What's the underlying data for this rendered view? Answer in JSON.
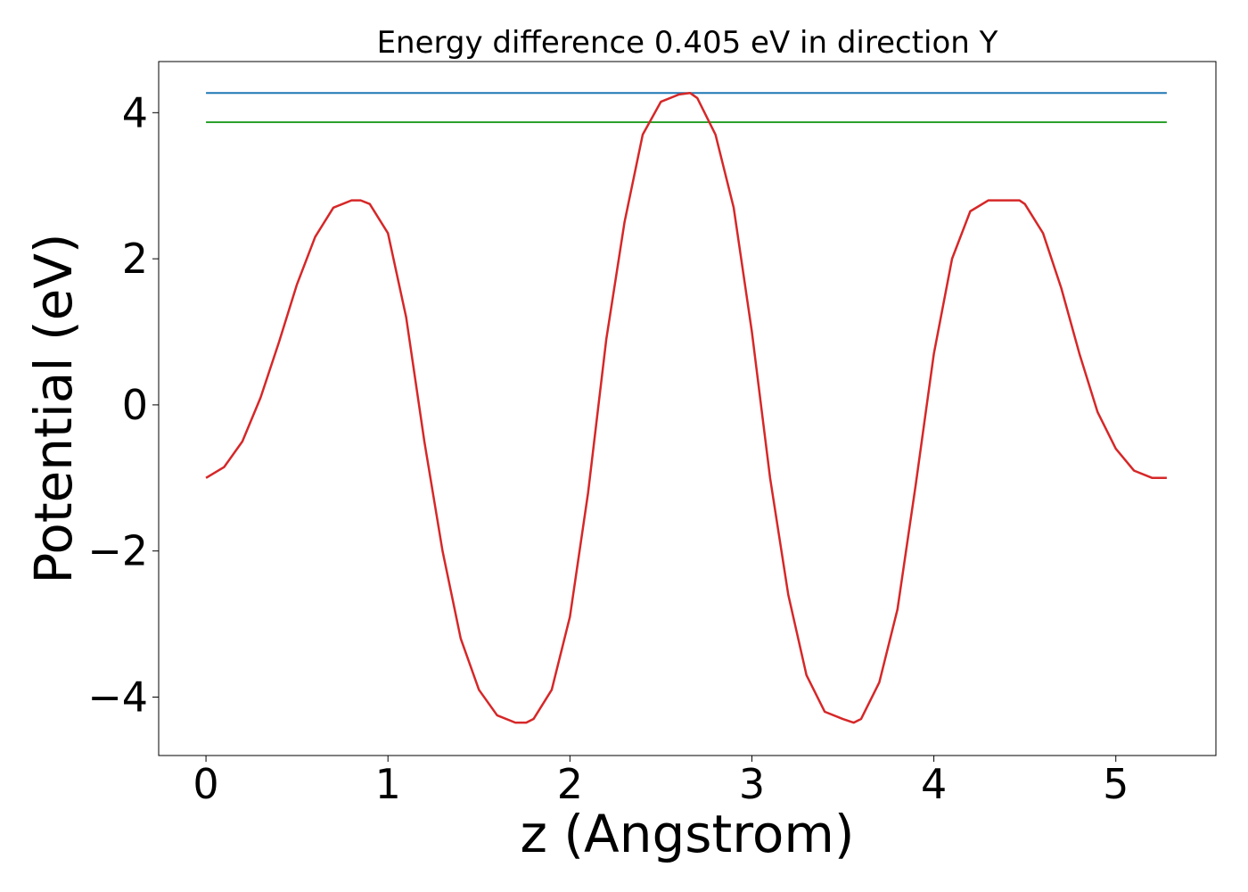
{
  "chart_data": {
    "type": "line",
    "title": "Energy difference 0.405 eV in direction Y",
    "xlabel": "z (Angstrom)",
    "ylabel": "Potential (eV)",
    "xlim": [
      -0.26,
      5.55
    ],
    "ylim": [
      -4.8,
      4.7
    ],
    "xticks": [
      0,
      1,
      2,
      3,
      4,
      5
    ],
    "yticks": [
      -4,
      -2,
      0,
      2,
      4
    ],
    "grid": false,
    "colors": {
      "potential": "#d62728",
      "upper_level": "#1f77b4",
      "lower_level": "#2ca02c"
    },
    "series": [
      {
        "x": [
          0.0,
          0.1,
          0.2,
          0.3,
          0.4,
          0.5,
          0.6,
          0.7,
          0.8,
          0.85,
          0.9,
          1.0,
          1.1,
          1.2,
          1.3,
          1.4,
          1.5,
          1.6,
          1.7,
          1.76,
          1.8,
          1.9,
          2.0,
          2.1,
          2.2,
          2.3,
          2.4,
          2.5,
          2.6,
          2.66,
          2.7,
          2.8,
          2.9,
          3.0,
          3.1,
          3.2,
          3.3,
          3.4,
          3.5,
          3.56,
          3.6,
          3.7,
          3.8,
          3.9,
          4.0,
          4.1,
          4.2,
          4.3,
          4.4,
          4.47,
          4.5,
          4.6,
          4.7,
          4.8,
          4.9,
          5.0,
          5.1,
          5.2,
          5.28
        ],
        "values": [
          -1.0,
          -0.85,
          -0.5,
          0.1,
          0.85,
          1.65,
          2.3,
          2.7,
          2.8,
          2.8,
          2.75,
          2.35,
          1.2,
          -0.5,
          -2.0,
          -3.2,
          -3.9,
          -4.25,
          -4.35,
          -4.35,
          -4.3,
          -3.9,
          -2.9,
          -1.2,
          0.9,
          2.5,
          3.7,
          4.15,
          4.25,
          4.27,
          4.2,
          3.7,
          2.7,
          1.0,
          -1.0,
          -2.6,
          -3.7,
          -4.2,
          -4.3,
          -4.35,
          -4.3,
          -3.8,
          -2.8,
          -1.1,
          0.7,
          2.0,
          2.65,
          2.8,
          2.8,
          2.8,
          2.75,
          2.35,
          1.6,
          0.7,
          -0.1,
          -0.6,
          -0.9,
          -1.0,
          -1.0
        ]
      },
      {
        "x": [
          0.0,
          5.28
        ],
        "values": [
          4.27,
          4.27
        ]
      },
      {
        "x": [
          0.0,
          5.28
        ],
        "values": [
          3.87,
          3.87
        ]
      }
    ]
  }
}
